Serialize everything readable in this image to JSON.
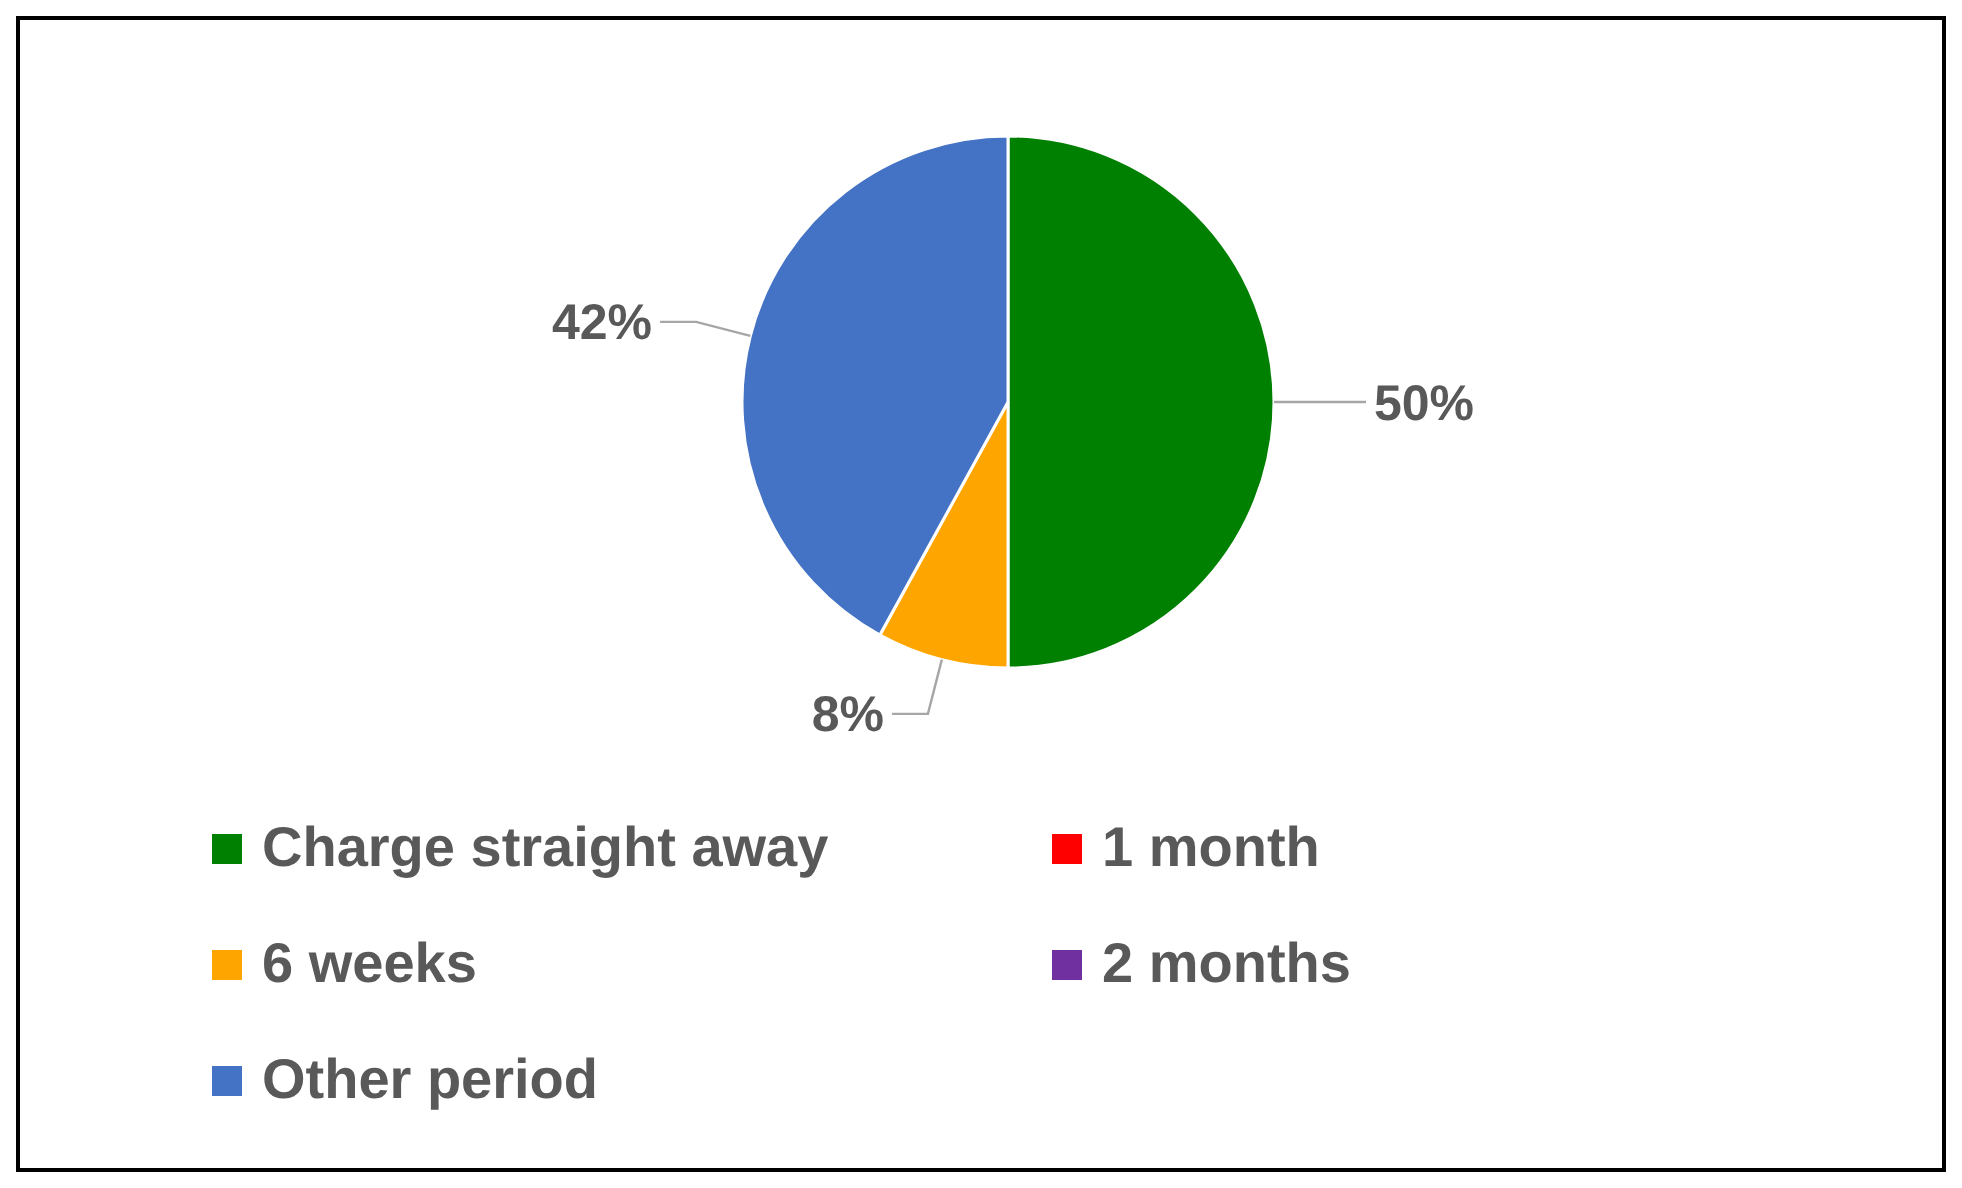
{
  "chart_data": {
    "type": "pie",
    "categories": [
      "Charge straight away",
      "1 month",
      "6 weeks",
      "2 months",
      "Other period"
    ],
    "values": [
      50,
      0,
      8,
      0,
      42
    ],
    "colors": [
      "#008000",
      "#ff0000",
      "#ffa500",
      "#7030a0",
      "#4472c4"
    ],
    "value_labels": [
      "50%",
      null,
      "8%",
      null,
      "42%"
    ],
    "legend": "bottom"
  }
}
